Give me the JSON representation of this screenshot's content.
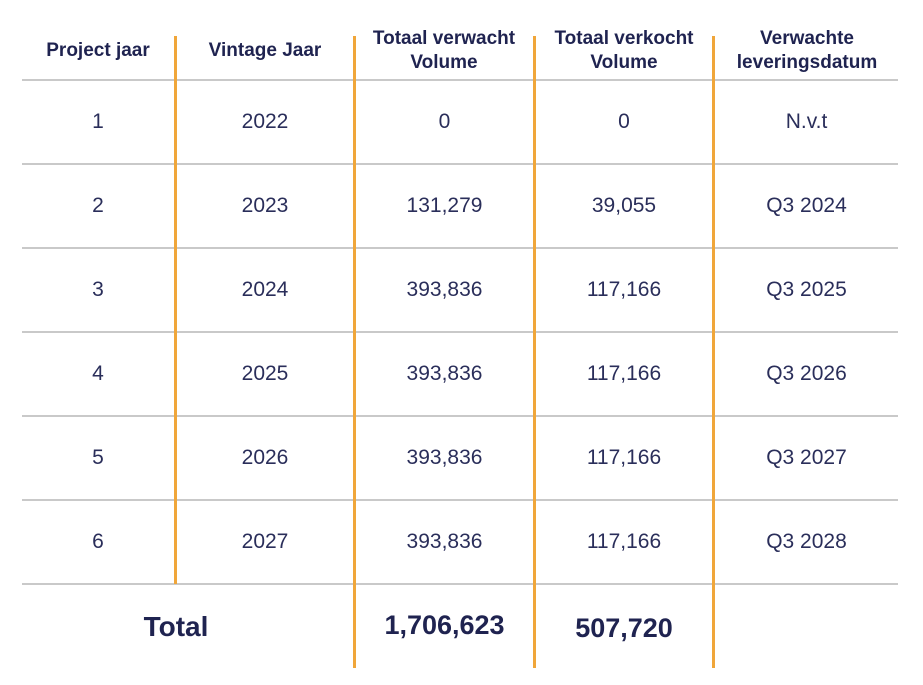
{
  "table": {
    "headers": [
      "Project jaar",
      "Vintage Jaar",
      "Totaal verwacht Volume",
      "Totaal verkocht Volume",
      "Verwachte leveringsdatum"
    ],
    "rows": [
      [
        "1",
        "2022",
        "0",
        "0",
        "N.v.t"
      ],
      [
        "2",
        "2023",
        "131,279",
        "39,055",
        "Q3 2024"
      ],
      [
        "3",
        "2024",
        "393,836",
        "117,166",
        "Q3 2025"
      ],
      [
        "4",
        "2025",
        "393,836",
        "117,166",
        "Q3 2026"
      ],
      [
        "5",
        "2026",
        "393,836",
        "117,166",
        "Q3 2027"
      ],
      [
        "6",
        "2027",
        "393,836",
        "117,166",
        "Q3 2028"
      ]
    ],
    "total": {
      "label": "Total",
      "expected_volume": "1,706,623",
      "sold_volume": "507,720"
    }
  },
  "colors": {
    "column_divider": "#f0a63a",
    "row_divider": "#c9c9c9",
    "text": "#1f2350"
  }
}
